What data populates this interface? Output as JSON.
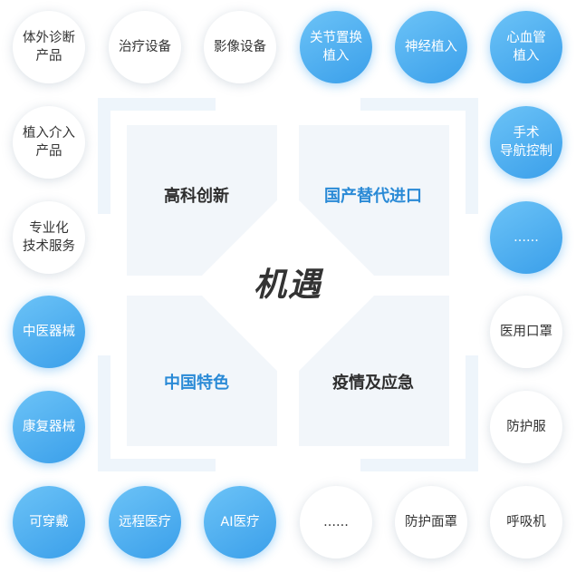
{
  "center": {
    "title": "机遇"
  },
  "quadrants": [
    {
      "label": "高科创新",
      "color": "#2e2e2e"
    },
    {
      "label": "国产替代进口",
      "color": "#2a8ad6"
    },
    {
      "label": "中国特色",
      "color": "#2a8ad6"
    },
    {
      "label": "疫情及应急",
      "color": "#2e2e2e"
    }
  ],
  "items": [
    {
      "label": "体外诊断\n产品",
      "style": "white"
    },
    {
      "label": "治疗设备",
      "style": "white"
    },
    {
      "label": "影像设备",
      "style": "white"
    },
    {
      "label": "关节置换\n植入",
      "style": "blue"
    },
    {
      "label": "神经植入",
      "style": "blue"
    },
    {
      "label": "心血管\n植入",
      "style": "blue"
    },
    {
      "label": "植入介入\n产品",
      "style": "white"
    },
    {
      "label": "手术\n导航控制",
      "style": "blue"
    },
    {
      "label": "专业化\n技术服务",
      "style": "white"
    },
    {
      "label": "......",
      "style": "blue"
    },
    {
      "label": "中医器械",
      "style": "blue"
    },
    {
      "label": "医用口罩",
      "style": "white"
    },
    {
      "label": "康复器械",
      "style": "blue"
    },
    {
      "label": "防护服",
      "style": "white"
    },
    {
      "label": "可穿戴",
      "style": "blue"
    },
    {
      "label": "远程医疗",
      "style": "blue"
    },
    {
      "label": "AI医疗",
      "style": "blue"
    },
    {
      "label": "......",
      "style": "white"
    },
    {
      "label": "防护面罩",
      "style": "white"
    },
    {
      "label": "呼吸机",
      "style": "white"
    }
  ],
  "colors": {
    "accent_blue": "#3a9fea",
    "label_blue": "#2a8ad6",
    "panel": "#f2f6fa",
    "frame": "#eef5fb"
  }
}
